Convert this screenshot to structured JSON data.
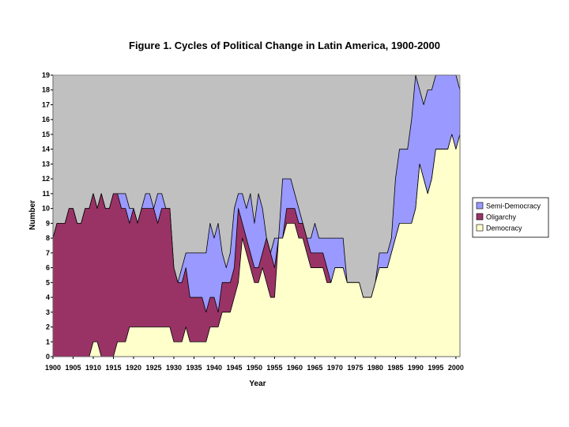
{
  "chart_data": {
    "type": "area",
    "title": "Figure 1.  Cycles of Political Change in Latin America, 1900-2000",
    "xlabel": "Year",
    "ylabel": "Number",
    "xlim": [
      1900,
      2000
    ],
    "ylim": [
      0,
      19
    ],
    "x_ticks": [
      1900,
      1905,
      1910,
      1915,
      1920,
      1925,
      1930,
      1935,
      1940,
      1945,
      1950,
      1955,
      1960,
      1965,
      1970,
      1975,
      1980,
      1985,
      1990,
      1995,
      2000
    ],
    "y_ticks": [
      0,
      1,
      2,
      3,
      4,
      5,
      6,
      7,
      8,
      9,
      10,
      11,
      12,
      13,
      14,
      15,
      16,
      17,
      18,
      19
    ],
    "y_tick_labels": [
      "0",
      "1",
      "2",
      "3",
      "4",
      "5",
      "6",
      "7",
      "8",
      "9",
      "10",
      "11",
      "12",
      "13",
      "14",
      "15",
      "16",
      "17",
      "18",
      "19"
    ],
    "plot_background": "#c0c0c0",
    "stacked": true,
    "series": [
      {
        "name": "Democracy",
        "color": "#ffffcc",
        "points": [
          [
            1900,
            0
          ],
          [
            1909,
            0
          ],
          [
            1910,
            1
          ],
          [
            1911,
            1
          ],
          [
            1912,
            0
          ],
          [
            1915,
            0
          ],
          [
            1916,
            1
          ],
          [
            1918,
            1
          ],
          [
            1919,
            2
          ],
          [
            1928,
            2
          ],
          [
            1929,
            2
          ],
          [
            1930,
            1
          ],
          [
            1932,
            1
          ],
          [
            1933,
            2
          ],
          [
            1934,
            1
          ],
          [
            1938,
            1
          ],
          [
            1939,
            2
          ],
          [
            1941,
            2
          ],
          [
            1942,
            3
          ],
          [
            1944,
            3
          ],
          [
            1945,
            4
          ],
          [
            1946,
            5
          ],
          [
            1947,
            8
          ],
          [
            1948,
            7
          ],
          [
            1949,
            6
          ],
          [
            1950,
            5
          ],
          [
            1951,
            5
          ],
          [
            1952,
            6
          ],
          [
            1953,
            5
          ],
          [
            1954,
            4
          ],
          [
            1955,
            4
          ],
          [
            1956,
            8
          ],
          [
            1957,
            8
          ],
          [
            1958,
            9
          ],
          [
            1960,
            9
          ],
          [
            1961,
            8
          ],
          [
            1962,
            8
          ],
          [
            1963,
            7
          ],
          [
            1964,
            6
          ],
          [
            1967,
            6
          ],
          [
            1968,
            5
          ],
          [
            1969,
            5
          ],
          [
            1970,
            6
          ],
          [
            1972,
            6
          ],
          [
            1973,
            5
          ],
          [
            1976,
            5
          ],
          [
            1977,
            4
          ],
          [
            1979,
            4
          ],
          [
            1980,
            5
          ],
          [
            1981,
            6
          ],
          [
            1983,
            6
          ],
          [
            1984,
            7
          ],
          [
            1985,
            8
          ],
          [
            1986,
            9
          ],
          [
            1989,
            9
          ],
          [
            1990,
            10
          ],
          [
            1991,
            13
          ],
          [
            1992,
            12
          ],
          [
            1993,
            11
          ],
          [
            1994,
            12
          ],
          [
            1995,
            14
          ],
          [
            1998,
            14
          ],
          [
            1999,
            15
          ],
          [
            2000,
            14
          ],
          [
            2001,
            15
          ]
        ]
      },
      {
        "name": "Oligarchy",
        "color": "#993366",
        "points": [
          [
            1900,
            8
          ],
          [
            1901,
            9
          ],
          [
            1903,
            9
          ],
          [
            1904,
            10
          ],
          [
            1905,
            10
          ],
          [
            1906,
            9
          ],
          [
            1907,
            9
          ],
          [
            1908,
            10
          ],
          [
            1909,
            10
          ],
          [
            1910,
            11
          ],
          [
            1911,
            10
          ],
          [
            1912,
            11
          ],
          [
            1913,
            10
          ],
          [
            1914,
            10
          ],
          [
            1915,
            11
          ],
          [
            1916,
            11
          ],
          [
            1917,
            10
          ],
          [
            1918,
            10
          ],
          [
            1919,
            9
          ],
          [
            1920,
            10
          ],
          [
            1921,
            9
          ],
          [
            1922,
            10
          ],
          [
            1925,
            10
          ],
          [
            1926,
            9
          ],
          [
            1927,
            10
          ],
          [
            1929,
            10
          ],
          [
            1930,
            6
          ],
          [
            1931,
            5
          ],
          [
            1932,
            5
          ],
          [
            1933,
            6
          ],
          [
            1934,
            4
          ],
          [
            1937,
            4
          ],
          [
            1938,
            3
          ],
          [
            1939,
            4
          ],
          [
            1940,
            4
          ],
          [
            1941,
            3
          ],
          [
            1942,
            5
          ],
          [
            1944,
            5
          ],
          [
            1945,
            6
          ],
          [
            1946,
            10
          ],
          [
            1947,
            9
          ],
          [
            1948,
            8
          ],
          [
            1949,
            7
          ],
          [
            1950,
            6
          ],
          [
            1951,
            6
          ],
          [
            1952,
            7
          ],
          [
            1953,
            8
          ],
          [
            1954,
            7
          ],
          [
            1955,
            6
          ],
          [
            1956,
            8
          ],
          [
            1957,
            8
          ],
          [
            1958,
            10
          ],
          [
            1960,
            10
          ],
          [
            1961,
            9
          ],
          [
            1962,
            9
          ],
          [
            1963,
            8
          ],
          [
            1964,
            7
          ],
          [
            1967,
            7
          ],
          [
            1968,
            6
          ],
          [
            1969,
            5
          ],
          [
            1970,
            6
          ],
          [
            1972,
            6
          ],
          [
            1973,
            5
          ],
          [
            1976,
            5
          ],
          [
            1977,
            4
          ],
          [
            1979,
            4
          ],
          [
            1980,
            5
          ],
          [
            1981,
            6
          ],
          [
            1983,
            6
          ],
          [
            1984,
            7
          ],
          [
            1985,
            8
          ],
          [
            1986,
            9
          ],
          [
            1989,
            9
          ],
          [
            1990,
            10
          ],
          [
            1991,
            13
          ],
          [
            1992,
            12
          ],
          [
            1993,
            11
          ],
          [
            1994,
            12
          ],
          [
            1995,
            14
          ],
          [
            1998,
            14
          ],
          [
            1999,
            15
          ],
          [
            2000,
            14
          ],
          [
            2001,
            15
          ]
        ]
      },
      {
        "name": "Semi-Democracy",
        "color": "#9999ff",
        "points": [
          [
            1900,
            8
          ],
          [
            1901,
            9
          ],
          [
            1903,
            9
          ],
          [
            1904,
            10
          ],
          [
            1905,
            10
          ],
          [
            1906,
            9
          ],
          [
            1907,
            9
          ],
          [
            1908,
            10
          ],
          [
            1909,
            10
          ],
          [
            1910,
            11
          ],
          [
            1911,
            10
          ],
          [
            1912,
            11
          ],
          [
            1913,
            10
          ],
          [
            1914,
            10
          ],
          [
            1915,
            11
          ],
          [
            1918,
            11
          ],
          [
            1919,
            10
          ],
          [
            1920,
            10
          ],
          [
            1921,
            9
          ],
          [
            1922,
            10
          ],
          [
            1923,
            11
          ],
          [
            1924,
            11
          ],
          [
            1925,
            10
          ],
          [
            1926,
            11
          ],
          [
            1927,
            11
          ],
          [
            1928,
            10
          ],
          [
            1929,
            10
          ],
          [
            1930,
            6
          ],
          [
            1931,
            5
          ],
          [
            1932,
            6
          ],
          [
            1933,
            7
          ],
          [
            1938,
            7
          ],
          [
            1939,
            9
          ],
          [
            1940,
            8
          ],
          [
            1941,
            9
          ],
          [
            1942,
            7
          ],
          [
            1943,
            6
          ],
          [
            1944,
            7
          ],
          [
            1945,
            10
          ],
          [
            1946,
            11
          ],
          [
            1947,
            11
          ],
          [
            1948,
            10
          ],
          [
            1949,
            11
          ],
          [
            1950,
            9
          ],
          [
            1951,
            11
          ],
          [
            1952,
            10
          ],
          [
            1953,
            8
          ],
          [
            1954,
            7
          ],
          [
            1955,
            8
          ],
          [
            1956,
            8
          ],
          [
            1957,
            12
          ],
          [
            1959,
            12
          ],
          [
            1960,
            11
          ],
          [
            1961,
            10
          ],
          [
            1962,
            9
          ],
          [
            1963,
            8
          ],
          [
            1964,
            8
          ],
          [
            1965,
            9
          ],
          [
            1966,
            8
          ],
          [
            1967,
            8
          ],
          [
            1972,
            8
          ],
          [
            1973,
            5
          ],
          [
            1976,
            5
          ],
          [
            1977,
            4
          ],
          [
            1979,
            4
          ],
          [
            1980,
            5
          ],
          [
            1981,
            7
          ],
          [
            1983,
            7
          ],
          [
            1984,
            8
          ],
          [
            1985,
            12
          ],
          [
            1986,
            14
          ],
          [
            1988,
            14
          ],
          [
            1989,
            16
          ],
          [
            1990,
            19
          ],
          [
            1991,
            18
          ],
          [
            1992,
            17
          ],
          [
            1993,
            18
          ],
          [
            1994,
            18
          ],
          [
            1995,
            19
          ],
          [
            1999,
            19
          ],
          [
            2000,
            19
          ],
          [
            2001,
            18
          ]
        ]
      }
    ],
    "legend": {
      "placement": "right",
      "entries": [
        "Semi-Democracy",
        "Oligarchy",
        "Democracy"
      ]
    }
  }
}
